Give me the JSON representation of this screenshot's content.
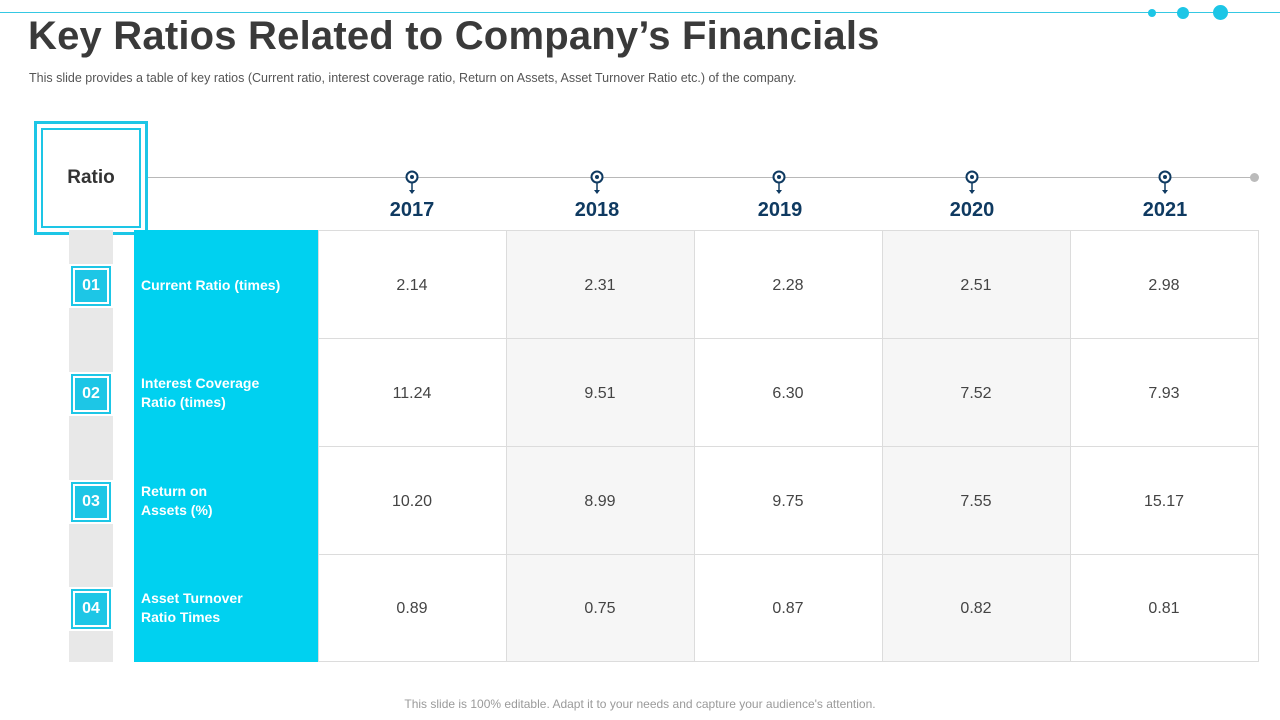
{
  "title": "Key Ratios Related to Company’s Financials",
  "subtitle": "This slide provides  a table of key ratios (Current  ratio, interest coverage  ratio, Return  on Assets, Asset Turnover  Ratio etc.) of the company.",
  "header_label": "Ratio",
  "years": [
    "2017",
    "2018",
    "2019",
    "2020",
    "2021"
  ],
  "rows": [
    {
      "num": "01",
      "label": "Current Ratio (times)",
      "values": [
        "2.14",
        "2.31",
        "2.28",
        "2.51",
        "2.98"
      ]
    },
    {
      "num": "02",
      "label": "Interest Coverage\nRatio (times)",
      "values": [
        "11.24",
        "9.51",
        "6.30",
        "7.52",
        "7.93"
      ]
    },
    {
      "num": "03",
      "label": "Return on\nAssets (%)",
      "values": [
        "10.20",
        "8.99",
        "9.75",
        "7.55",
        "15.17"
      ]
    },
    {
      "num": "04",
      "label": "Asset Turnover\nRatio Times",
      "values": [
        "0.89",
        "0.75",
        "0.87",
        "0.82",
        "0.81"
      ]
    }
  ],
  "footer": "This slide is 100% editable. Adapt it to your needs and capture your audience's attention.",
  "colors": {
    "accent": "#1dc6e6",
    "label_fill": "#00d1f0",
    "year_text": "#0f3a61"
  }
}
